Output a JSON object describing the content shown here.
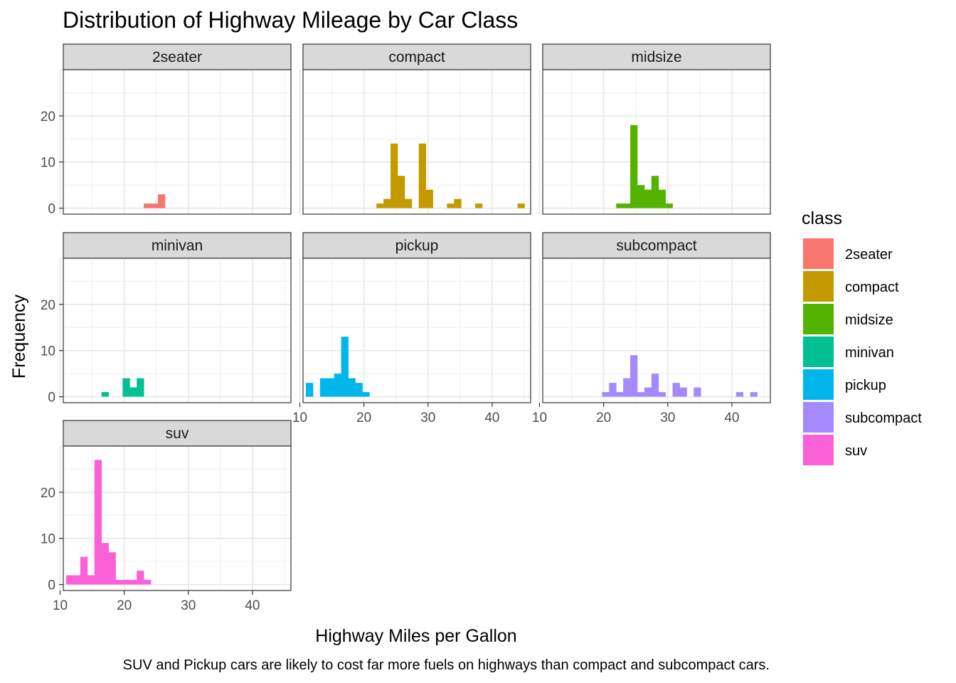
{
  "chart_data": {
    "type": "bar",
    "subtype": "histogram",
    "title": "Distribution of Highway Mileage by Car Class",
    "xlabel": "Highway Miles per Gallon",
    "ylabel": "Frequency",
    "caption": "SUV and Pickup cars are likely to cost far more fuels on highways than compact and subcompact cars.",
    "xlim": [
      10.5,
      46
    ],
    "ylim": [
      -1.3,
      30
    ],
    "x_ticks": [
      10,
      20,
      30,
      40
    ],
    "y_ticks": [
      0,
      10,
      20
    ],
    "grid": true,
    "facet_wrap": "class",
    "facet_columns": 3,
    "bin_width": 1.1,
    "bin_centers": [
      11.5,
      12.6,
      13.7,
      14.8,
      15.9,
      17.0,
      18.1,
      19.2,
      20.3,
      21.4,
      22.5,
      23.6,
      24.7,
      25.8,
      26.9,
      28.0,
      29.1,
      30.2,
      31.3,
      32.4,
      33.5,
      34.6,
      35.7,
      36.8,
      37.9,
      39.0,
      40.1,
      41.2,
      42.3,
      43.4,
      44.5
    ],
    "legend": {
      "title": "class",
      "position": "right",
      "items": [
        {
          "label": "2seater",
          "color": "#F8766D"
        },
        {
          "label": "compact",
          "color": "#C49A00"
        },
        {
          "label": "midsize",
          "color": "#53B400"
        },
        {
          "label": "minivan",
          "color": "#00C094"
        },
        {
          "label": "pickup",
          "color": "#00B6EB"
        },
        {
          "label": "subcompact",
          "color": "#A58AFF"
        },
        {
          "label": "suv",
          "color": "#FB61D7"
        }
      ]
    },
    "series": [
      {
        "name": "2seater",
        "color": "#F8766D",
        "values": [
          0,
          0,
          0,
          0,
          0,
          0,
          0,
          0,
          0,
          0,
          0,
          1,
          1,
          3,
          0,
          0,
          0,
          0,
          0,
          0,
          0,
          0,
          0,
          0,
          0,
          0,
          0,
          0,
          0,
          0,
          0
        ]
      },
      {
        "name": "compact",
        "color": "#C49A00",
        "values": [
          0,
          0,
          0,
          0,
          0,
          0,
          0,
          0,
          0,
          0,
          1,
          2,
          14,
          7,
          2,
          0,
          14,
          4,
          0,
          0,
          1,
          2,
          0,
          0,
          1,
          0,
          0,
          0,
          0,
          0,
          1
        ]
      },
      {
        "name": "midsize",
        "color": "#53B400",
        "values": [
          0,
          0,
          0,
          0,
          0,
          0,
          0,
          0,
          0,
          0,
          1,
          1,
          18,
          5,
          4,
          7,
          4,
          1,
          0,
          0,
          0,
          0,
          0,
          0,
          0,
          0,
          0,
          0,
          0,
          0,
          0
        ]
      },
      {
        "name": "minivan",
        "color": "#00C094",
        "values": [
          0,
          0,
          0,
          0,
          0,
          1,
          0,
          0,
          4,
          2,
          4,
          0,
          0,
          0,
          0,
          0,
          0,
          0,
          0,
          0,
          0,
          0,
          0,
          0,
          0,
          0,
          0,
          0,
          0,
          0,
          0
        ]
      },
      {
        "name": "pickup",
        "color": "#00B6EB",
        "values": [
          3,
          0,
          4,
          4,
          5,
          13,
          4,
          3,
          1,
          0,
          0,
          0,
          0,
          0,
          0,
          0,
          0,
          0,
          0,
          0,
          0,
          0,
          0,
          0,
          0,
          0,
          0,
          0,
          0,
          0,
          0
        ]
      },
      {
        "name": "subcompact",
        "color": "#A58AFF",
        "values": [
          0,
          0,
          0,
          0,
          0,
          0,
          0,
          0,
          1,
          3,
          1,
          4,
          9,
          1,
          2,
          5,
          1,
          0,
          3,
          2,
          0,
          2,
          0,
          0,
          0,
          0,
          0,
          1,
          0,
          1,
          0
        ]
      },
      {
        "name": "suv",
        "color": "#FB61D7",
        "values": [
          2,
          2,
          6,
          2,
          27,
          9,
          7,
          1,
          1,
          1,
          3,
          1,
          0,
          0,
          0,
          0,
          0,
          0,
          0,
          0,
          0,
          0,
          0,
          0,
          0,
          0,
          0,
          0,
          0,
          0,
          0
        ]
      }
    ]
  }
}
